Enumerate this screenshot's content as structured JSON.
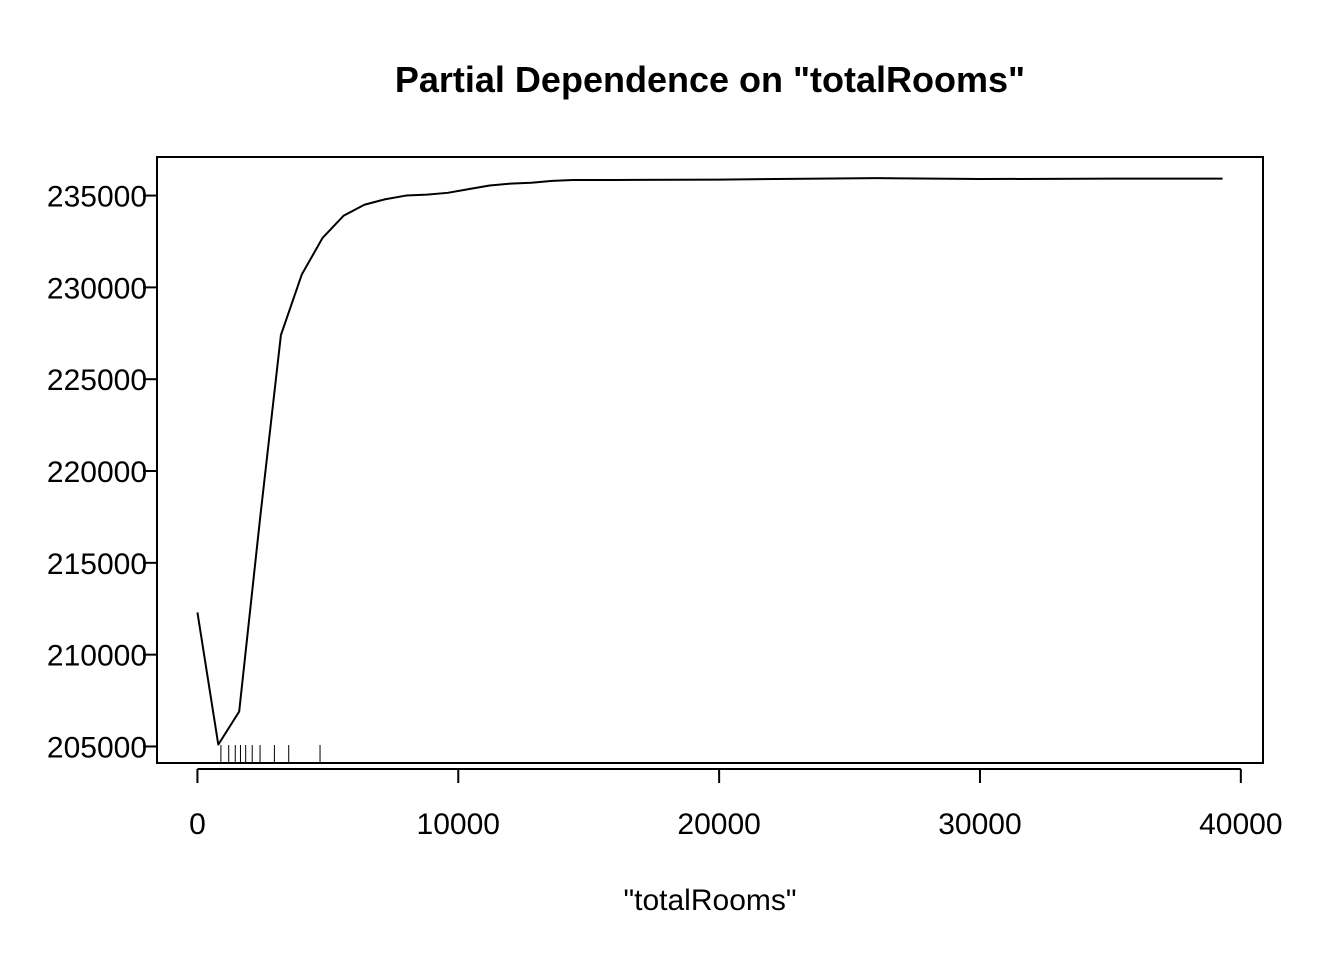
{
  "chart_data": {
    "type": "line",
    "title": "Partial Dependence on \"totalRooms\"",
    "xlabel": "\"totalRooms\"",
    "ylabel": "",
    "xlim": [
      -1550,
      40850
    ],
    "ylim": [
      204100,
      237100
    ],
    "x_ticks": [
      0,
      10000,
      20000,
      30000,
      40000
    ],
    "x_tick_labels": [
      "0",
      "10000",
      "20000",
      "30000",
      "40000"
    ],
    "y_ticks": [
      205000,
      210000,
      215000,
      220000,
      225000,
      230000,
      235000
    ],
    "y_tick_labels": [
      "205000",
      "210000",
      "215000",
      "220000",
      "225000",
      "230000",
      "235000"
    ],
    "series": [
      {
        "name": "partial dependence",
        "x": [
          0,
          800,
          1600,
          2400,
          3200,
          4000,
          4800,
          5600,
          6400,
          7200,
          8000,
          8800,
          9600,
          10400,
          11200,
          12000,
          12800,
          13600,
          14400,
          16000,
          20000,
          26000,
          30000,
          35000,
          39300
        ],
        "y": [
          212300,
          205100,
          206900,
          217400,
          227400,
          230700,
          232700,
          233900,
          234500,
          234800,
          235000,
          235050,
          235150,
          235350,
          235550,
          235650,
          235700,
          235800,
          235850,
          235850,
          235870,
          235950,
          235900,
          235920,
          235920
        ]
      }
    ],
    "rug": [
      900,
      1200,
      1450,
      1650,
      1850,
      2100,
      2400,
      2950,
      3500,
      4700
    ],
    "grid": false
  }
}
